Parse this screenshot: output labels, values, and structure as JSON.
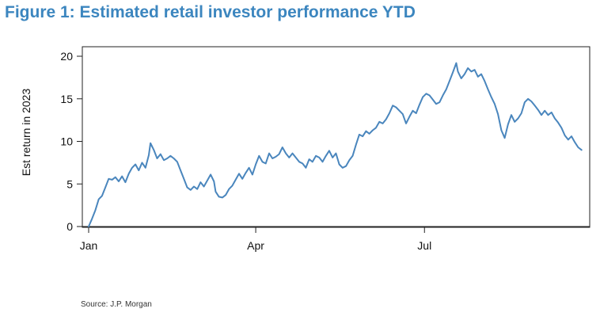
{
  "title": "Figure 1: Estimated retail investor performance YTD",
  "source": "Source: J.P. Morgan",
  "colors": {
    "title": "#3c86bf",
    "line": "#4a86bd"
  },
  "chart_data": {
    "type": "line",
    "title": "Figure 1: Estimated retail investor performance YTD",
    "xlabel": "",
    "ylabel": "Est return in 2023",
    "xlim": [
      0,
      298
    ],
    "ylim": [
      -1,
      20.5
    ],
    "x_unit": "day of year",
    "yticks": [
      0,
      5,
      10,
      15,
      20
    ],
    "xticks": [
      {
        "label": "Jan",
        "x": 0
      },
      {
        "label": "Apr",
        "x": 100
      },
      {
        "label": "Jul",
        "x": 201
      }
    ],
    "grid": false,
    "series": [
      {
        "name": "Est return in 2023",
        "points": [
          [
            0,
            0
          ],
          [
            2,
            0.9
          ],
          [
            4,
            1.9
          ],
          [
            6,
            3.2
          ],
          [
            8,
            3.6
          ],
          [
            10,
            4.6
          ],
          [
            12,
            5.6
          ],
          [
            14,
            5.5
          ],
          [
            16,
            5.8
          ],
          [
            18,
            5.3
          ],
          [
            20,
            5.9
          ],
          [
            22,
            5.2
          ],
          [
            24,
            6.2
          ],
          [
            26,
            6.9
          ],
          [
            28,
            7.3
          ],
          [
            30,
            6.6
          ],
          [
            32,
            7.5
          ],
          [
            34,
            6.9
          ],
          [
            36,
            8.4
          ],
          [
            37,
            9.8
          ],
          [
            39,
            9.0
          ],
          [
            41,
            8.0
          ],
          [
            43,
            8.5
          ],
          [
            45,
            7.8
          ],
          [
            47,
            8.0
          ],
          [
            49,
            8.3
          ],
          [
            51,
            8.0
          ],
          [
            53,
            7.6
          ],
          [
            55,
            6.6
          ],
          [
            57,
            5.6
          ],
          [
            59,
            4.6
          ],
          [
            61,
            4.3
          ],
          [
            63,
            4.7
          ],
          [
            65,
            4.4
          ],
          [
            67,
            5.2
          ],
          [
            69,
            4.7
          ],
          [
            71,
            5.4
          ],
          [
            73,
            6.1
          ],
          [
            75,
            5.3
          ],
          [
            76,
            4.1
          ],
          [
            78,
            3.5
          ],
          [
            80,
            3.4
          ],
          [
            82,
            3.7
          ],
          [
            84,
            4.4
          ],
          [
            86,
            4.8
          ],
          [
            88,
            5.5
          ],
          [
            90,
            6.2
          ],
          [
            92,
            5.6
          ],
          [
            94,
            6.3
          ],
          [
            96,
            6.9
          ],
          [
            98,
            6.1
          ],
          [
            100,
            7.3
          ],
          [
            102,
            8.3
          ],
          [
            104,
            7.6
          ],
          [
            106,
            7.4
          ],
          [
            108,
            8.6
          ],
          [
            110,
            8.0
          ],
          [
            112,
            8.2
          ],
          [
            114,
            8.5
          ],
          [
            116,
            9.3
          ],
          [
            118,
            8.6
          ],
          [
            120,
            8.1
          ],
          [
            122,
            8.6
          ],
          [
            124,
            8.1
          ],
          [
            126,
            7.6
          ],
          [
            128,
            7.4
          ],
          [
            130,
            6.9
          ],
          [
            132,
            7.9
          ],
          [
            134,
            7.6
          ],
          [
            136,
            8.3
          ],
          [
            138,
            8.1
          ],
          [
            140,
            7.6
          ],
          [
            142,
            8.3
          ],
          [
            144,
            8.9
          ],
          [
            146,
            8.1
          ],
          [
            148,
            8.6
          ],
          [
            150,
            7.3
          ],
          [
            152,
            6.9
          ],
          [
            154,
            7.1
          ],
          [
            156,
            7.8
          ],
          [
            158,
            8.3
          ],
          [
            160,
            9.6
          ],
          [
            162,
            10.8
          ],
          [
            164,
            10.6
          ],
          [
            166,
            11.2
          ],
          [
            168,
            10.9
          ],
          [
            170,
            11.3
          ],
          [
            172,
            11.6
          ],
          [
            174,
            12.3
          ],
          [
            176,
            12.1
          ],
          [
            178,
            12.6
          ],
          [
            180,
            13.3
          ],
          [
            182,
            14.2
          ],
          [
            184,
            14.0
          ],
          [
            186,
            13.6
          ],
          [
            188,
            13.2
          ],
          [
            190,
            12.1
          ],
          [
            192,
            12.9
          ],
          [
            194,
            13.6
          ],
          [
            196,
            13.3
          ],
          [
            198,
            14.3
          ],
          [
            200,
            15.2
          ],
          [
            202,
            15.6
          ],
          [
            204,
            15.4
          ],
          [
            206,
            14.9
          ],
          [
            208,
            14.4
          ],
          [
            210,
            14.6
          ],
          [
            212,
            15.4
          ],
          [
            214,
            16.1
          ],
          [
            216,
            17.1
          ],
          [
            218,
            18.1
          ],
          [
            220,
            19.2
          ],
          [
            221,
            18.2
          ],
          [
            223,
            17.4
          ],
          [
            225,
            17.9
          ],
          [
            227,
            18.6
          ],
          [
            229,
            18.2
          ],
          [
            231,
            18.4
          ],
          [
            233,
            17.6
          ],
          [
            235,
            17.9
          ],
          [
            237,
            17.1
          ],
          [
            239,
            16.1
          ],
          [
            241,
            15.2
          ],
          [
            243,
            14.4
          ],
          [
            245,
            13.2
          ],
          [
            247,
            11.3
          ],
          [
            249,
            10.4
          ],
          [
            251,
            12.0
          ],
          [
            253,
            13.1
          ],
          [
            255,
            12.3
          ],
          [
            257,
            12.7
          ],
          [
            259,
            13.3
          ],
          [
            261,
            14.6
          ],
          [
            263,
            15.0
          ],
          [
            265,
            14.7
          ],
          [
            267,
            14.2
          ],
          [
            269,
            13.7
          ],
          [
            271,
            13.1
          ],
          [
            273,
            13.6
          ],
          [
            275,
            13.1
          ],
          [
            277,
            13.4
          ],
          [
            279,
            12.7
          ],
          [
            281,
            12.2
          ],
          [
            283,
            11.6
          ],
          [
            285,
            10.7
          ],
          [
            287,
            10.2
          ],
          [
            289,
            10.6
          ],
          [
            291,
            9.9
          ],
          [
            293,
            9.3
          ],
          [
            295,
            9.0
          ]
        ]
      }
    ]
  }
}
